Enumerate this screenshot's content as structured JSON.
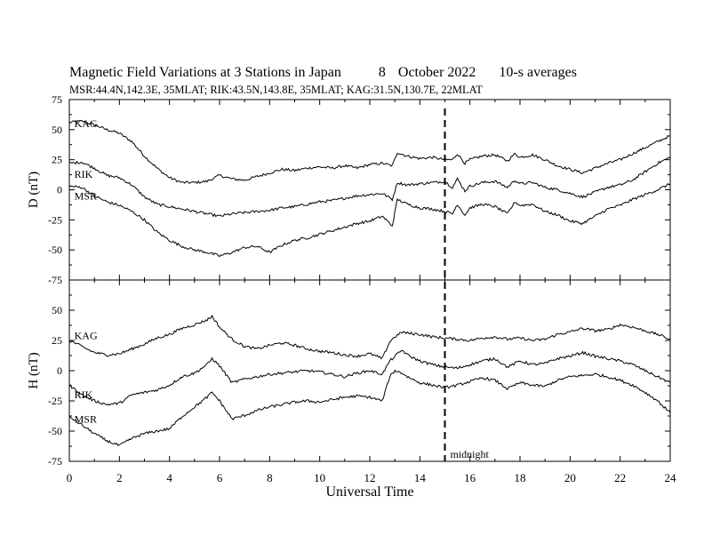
{
  "chart_data": {
    "type": "line",
    "title": "Magnetic Field Variations at 3 Stations in Japan",
    "date_day": "8",
    "date_month_year": "October 2022",
    "averaging": "10-s averages",
    "subtitle": "MSR:44.4N,142.3E, 35MLAT;  RIK:43.5N,143.8E, 35MLAT;  KAG:31.5N,130.7E, 22MLAT",
    "xlabel": "Universal Time",
    "xlim": [
      0,
      24
    ],
    "x_ticks": [
      "0",
      "2",
      "4",
      "6",
      "8",
      "10",
      "12",
      "14",
      "16",
      "18",
      "20",
      "22",
      "24"
    ],
    "marker": {
      "x": 15,
      "label": "midnight"
    },
    "panels": [
      {
        "ylabel": "D (nT)",
        "ylim": [
          -75,
          75
        ],
        "y_ticks": [
          "75",
          "50",
          "25",
          "0",
          "-25",
          "-50",
          "-75"
        ],
        "series": [
          {
            "name": "KAG",
            "label_at": [
              0.2,
              55
            ],
            "x": [
              0,
              0.5,
              1,
              1.5,
              2,
              2.5,
              3,
              3.5,
              4,
              4.5,
              5,
              5.5,
              6,
              6.5,
              7,
              7.5,
              8,
              8.5,
              9,
              9.5,
              10,
              10.5,
              11,
              11.5,
              12,
              12.5,
              12.9,
              13.1,
              13.5,
              14,
              14.5,
              15,
              15.3,
              15.5,
              15.8,
              16,
              16.5,
              17,
              17.5,
              17.8,
              18,
              18.5,
              19,
              19.5,
              20,
              20.5,
              21,
              21.5,
              22,
              22.5,
              23,
              23.5,
              24
            ],
            "values": [
              56,
              57,
              54,
              50,
              47,
              40,
              28,
              18,
              10,
              6,
              6,
              7,
              12,
              9,
              8,
              11,
              14,
              17,
              16,
              18,
              19,
              18,
              20,
              18,
              21,
              22,
              20,
              31,
              28,
              26,
              27,
              25,
              25,
              30,
              22,
              25,
              28,
              29,
              24,
              30,
              27,
              29,
              25,
              20,
              17,
              14,
              18,
              22,
              25,
              30,
              35,
              40,
              45
            ]
          },
          {
            "name": "RIK",
            "label_at": [
              0.2,
              13
            ],
            "x": [
              0,
              0.5,
              1,
              1.5,
              2,
              2.5,
              3,
              3.5,
              4,
              4.5,
              5,
              5.5,
              6,
              6.5,
              7,
              7.5,
              8,
              8.5,
              9,
              9.5,
              10,
              10.5,
              11,
              11.5,
              12,
              12.5,
              12.9,
              13.1,
              13.5,
              14,
              14.5,
              15,
              15.3,
              15.5,
              15.8,
              16,
              16.5,
              17,
              17.5,
              17.8,
              18,
              18.5,
              19,
              19.5,
              20,
              20.5,
              21,
              21.5,
              22,
              22.5,
              23,
              23.5,
              24
            ],
            "values": [
              22,
              23,
              18,
              12,
              10,
              4,
              -6,
              -12,
              -14,
              -16,
              -18,
              -20,
              -22,
              -20,
              -19,
              -18,
              -17,
              -15,
              -14,
              -12,
              -10,
              -9,
              -7,
              -5,
              -4,
              -3,
              -8,
              6,
              4,
              5,
              6,
              7,
              2,
              9,
              -1,
              3,
              6,
              7,
              2,
              8,
              5,
              6,
              2,
              0,
              -3,
              -6,
              -2,
              2,
              4,
              8,
              15,
              22,
              27
            ]
          },
          {
            "name": "MSR",
            "label_at": [
              0.2,
              -5
            ],
            "x": [
              0,
              0.5,
              1,
              1.5,
              2,
              2.5,
              3,
              3.5,
              4,
              4.5,
              5,
              5.5,
              6,
              6.5,
              7,
              7.5,
              8,
              8.5,
              9,
              9.5,
              10,
              10.5,
              11,
              11.5,
              12,
              12.5,
              12.9,
              13.1,
              13.5,
              14,
              14.5,
              15,
              15.3,
              15.5,
              15.8,
              16,
              16.5,
              17,
              17.5,
              17.8,
              18,
              18.5,
              19,
              19.5,
              20,
              20.5,
              21,
              21.5,
              22,
              22.5,
              23,
              23.5,
              24
            ],
            "values": [
              3,
              2,
              -5,
              -10,
              -13,
              -18,
              -25,
              -35,
              -42,
              -47,
              -50,
              -52,
              -55,
              -52,
              -48,
              -47,
              -52,
              -46,
              -42,
              -40,
              -37,
              -34,
              -31,
              -28,
              -26,
              -22,
              -30,
              -8,
              -12,
              -15,
              -16,
              -18,
              -20,
              -12,
              -21,
              -15,
              -12,
              -14,
              -20,
              -10,
              -13,
              -12,
              -18,
              -21,
              -26,
              -28,
              -22,
              -16,
              -13,
              -8,
              -4,
              0,
              5
            ]
          }
        ]
      },
      {
        "ylabel": "H (nT)",
        "ylim": [
          -75,
          75
        ],
        "y_ticks": [
          "75",
          "50",
          "25",
          "0",
          "-25",
          "-50",
          "-75"
        ],
        "series": [
          {
            "name": "KAG",
            "label_at": [
              0.2,
              29
            ],
            "x": [
              0,
              0.5,
              1,
              1.5,
              2,
              2.5,
              3,
              3.5,
              4,
              4.5,
              5,
              5.5,
              5.7,
              6,
              6.5,
              7,
              7.5,
              8,
              8.5,
              9,
              9.5,
              10,
              10.5,
              11,
              11.5,
              12,
              12.5,
              12.8,
              13,
              13.3,
              13.5,
              14,
              14.5,
              15,
              15.5,
              16,
              16.5,
              17,
              17.5,
              18,
              18.5,
              19,
              19.5,
              20,
              20.5,
              21,
              21.5,
              22,
              22.5,
              23,
              23.5,
              24
            ],
            "values": [
              25,
              20,
              15,
              13,
              14,
              18,
              22,
              27,
              30,
              35,
              38,
              42,
              45,
              36,
              26,
              20,
              18,
              21,
              23,
              21,
              18,
              16,
              15,
              13,
              12,
              14,
              10,
              24,
              28,
              32,
              31,
              30,
              28,
              27,
              26,
              25,
              27,
              28,
              26,
              27,
              25,
              26,
              30,
              32,
              35,
              33,
              34,
              38,
              36,
              33,
              30,
              26
            ]
          },
          {
            "name": "RIK",
            "label_at": [
              0.2,
              -20
            ],
            "x": [
              0,
              0.5,
              1,
              1.5,
              2,
              2.5,
              3,
              3.5,
              4,
              4.5,
              5,
              5.5,
              5.7,
              6,
              6.5,
              7,
              7.5,
              8,
              8.5,
              9,
              9.5,
              10,
              10.5,
              11,
              11.5,
              12,
              12.5,
              12.8,
              13,
              13.3,
              13.5,
              14,
              14.5,
              15,
              15.5,
              16,
              16.5,
              17,
              17.5,
              18,
              18.5,
              19,
              19.5,
              20,
              20.5,
              21,
              21.5,
              22,
              22.5,
              23,
              23.5,
              24
            ],
            "values": [
              -12,
              -20,
              -25,
              -28,
              -27,
              -20,
              -18,
              -16,
              -12,
              -5,
              -2,
              5,
              10,
              4,
              -10,
              -7,
              -5,
              -3,
              -2,
              -1,
              0,
              -1,
              -3,
              -5,
              -2,
              0,
              -3,
              8,
              12,
              17,
              13,
              8,
              5,
              3,
              2,
              5,
              8,
              10,
              3,
              8,
              5,
              6,
              10,
              12,
              15,
              12,
              10,
              8,
              5,
              0,
              -5,
              -10
            ]
          },
          {
            "name": "MSR",
            "label_at": [
              0.2,
              -40
            ],
            "x": [
              0,
              0.5,
              1,
              1.5,
              2,
              2.5,
              3,
              3.5,
              4,
              4.5,
              5,
              5.5,
              5.7,
              6,
              6.5,
              7,
              7.5,
              8,
              8.5,
              9,
              9.5,
              10,
              10.5,
              11,
              11.5,
              12,
              12.5,
              12.8,
              13,
              13.3,
              13.5,
              14,
              14.5,
              15,
              15.5,
              16,
              16.5,
              17,
              17.5,
              18,
              18.5,
              19,
              19.5,
              20,
              20.5,
              21,
              21.5,
              22,
              22.5,
              23,
              23.5,
              24
            ],
            "values": [
              -38,
              -45,
              -52,
              -58,
              -62,
              -56,
              -52,
              -50,
              -48,
              -38,
              -30,
              -22,
              -18,
              -25,
              -40,
              -37,
              -33,
              -30,
              -28,
              -26,
              -25,
              -26,
              -24,
              -22,
              -21,
              -22,
              -25,
              -5,
              0,
              -2,
              -5,
              -10,
              -12,
              -14,
              -12,
              -9,
              -6,
              -8,
              -15,
              -10,
              -12,
              -13,
              -8,
              -5,
              -4,
              -3,
              -5,
              -8,
              -12,
              -18,
              -25,
              -35
            ]
          }
        ]
      }
    ]
  }
}
